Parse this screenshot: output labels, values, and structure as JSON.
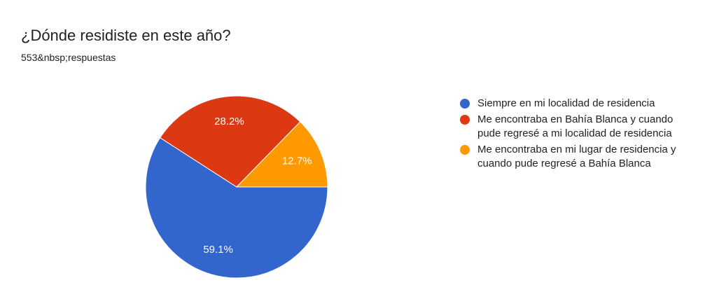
{
  "chart_data": {
    "type": "pie",
    "title": "¿Dónde residiste en este año?",
    "subtitle": "553&nbsp;respuestas",
    "categories": [
      "Siempre en mi localidad de residencia",
      "Me encontraba en Bahía Blanca y cuando pude regresé a mi localidad de residencia",
      "Me encontraba en mi lugar de residencia y cuando pude regresé a Bahía Blanca"
    ],
    "values": [
      59.1,
      28.2,
      12.7
    ],
    "value_labels": [
      "59.1%",
      "28.2%",
      "12.7%"
    ],
    "colors": [
      "#3366cc",
      "#dc3912",
      "#ff9900"
    ]
  }
}
